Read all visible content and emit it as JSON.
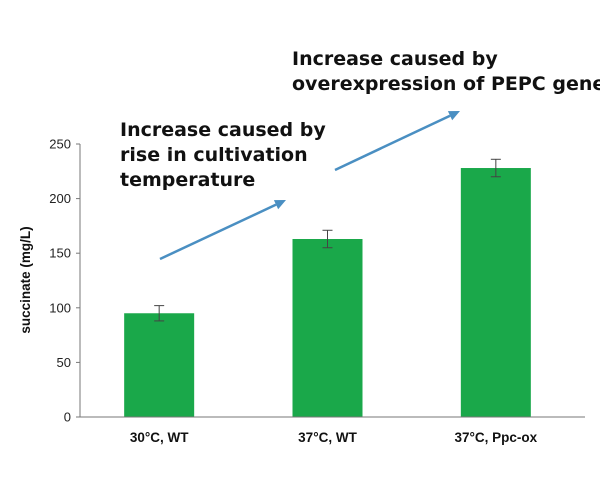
{
  "chart_data": {
    "type": "bar",
    "categories": [
      "30°C, WT",
      "37°C, WT",
      "37°C, Ppc-ox"
    ],
    "values": [
      95,
      163,
      228
    ],
    "errors": [
      7,
      8,
      8
    ],
    "ylabel": "succinate (mg/L)",
    "ylim": [
      0,
      250
    ],
    "yticks": [
      "0",
      "50",
      "100",
      "150",
      "200",
      "250"
    ],
    "grid": false,
    "bar_color": "#1aa84a",
    "arrow_color": "#4a8fc2",
    "annotations": [
      {
        "lines": [
          "Increase caused by",
          "rise in cultivation",
          "temperature"
        ]
      },
      {
        "lines": [
          "Increase caused by",
          "overexpression of PEPC gene"
        ]
      }
    ]
  }
}
